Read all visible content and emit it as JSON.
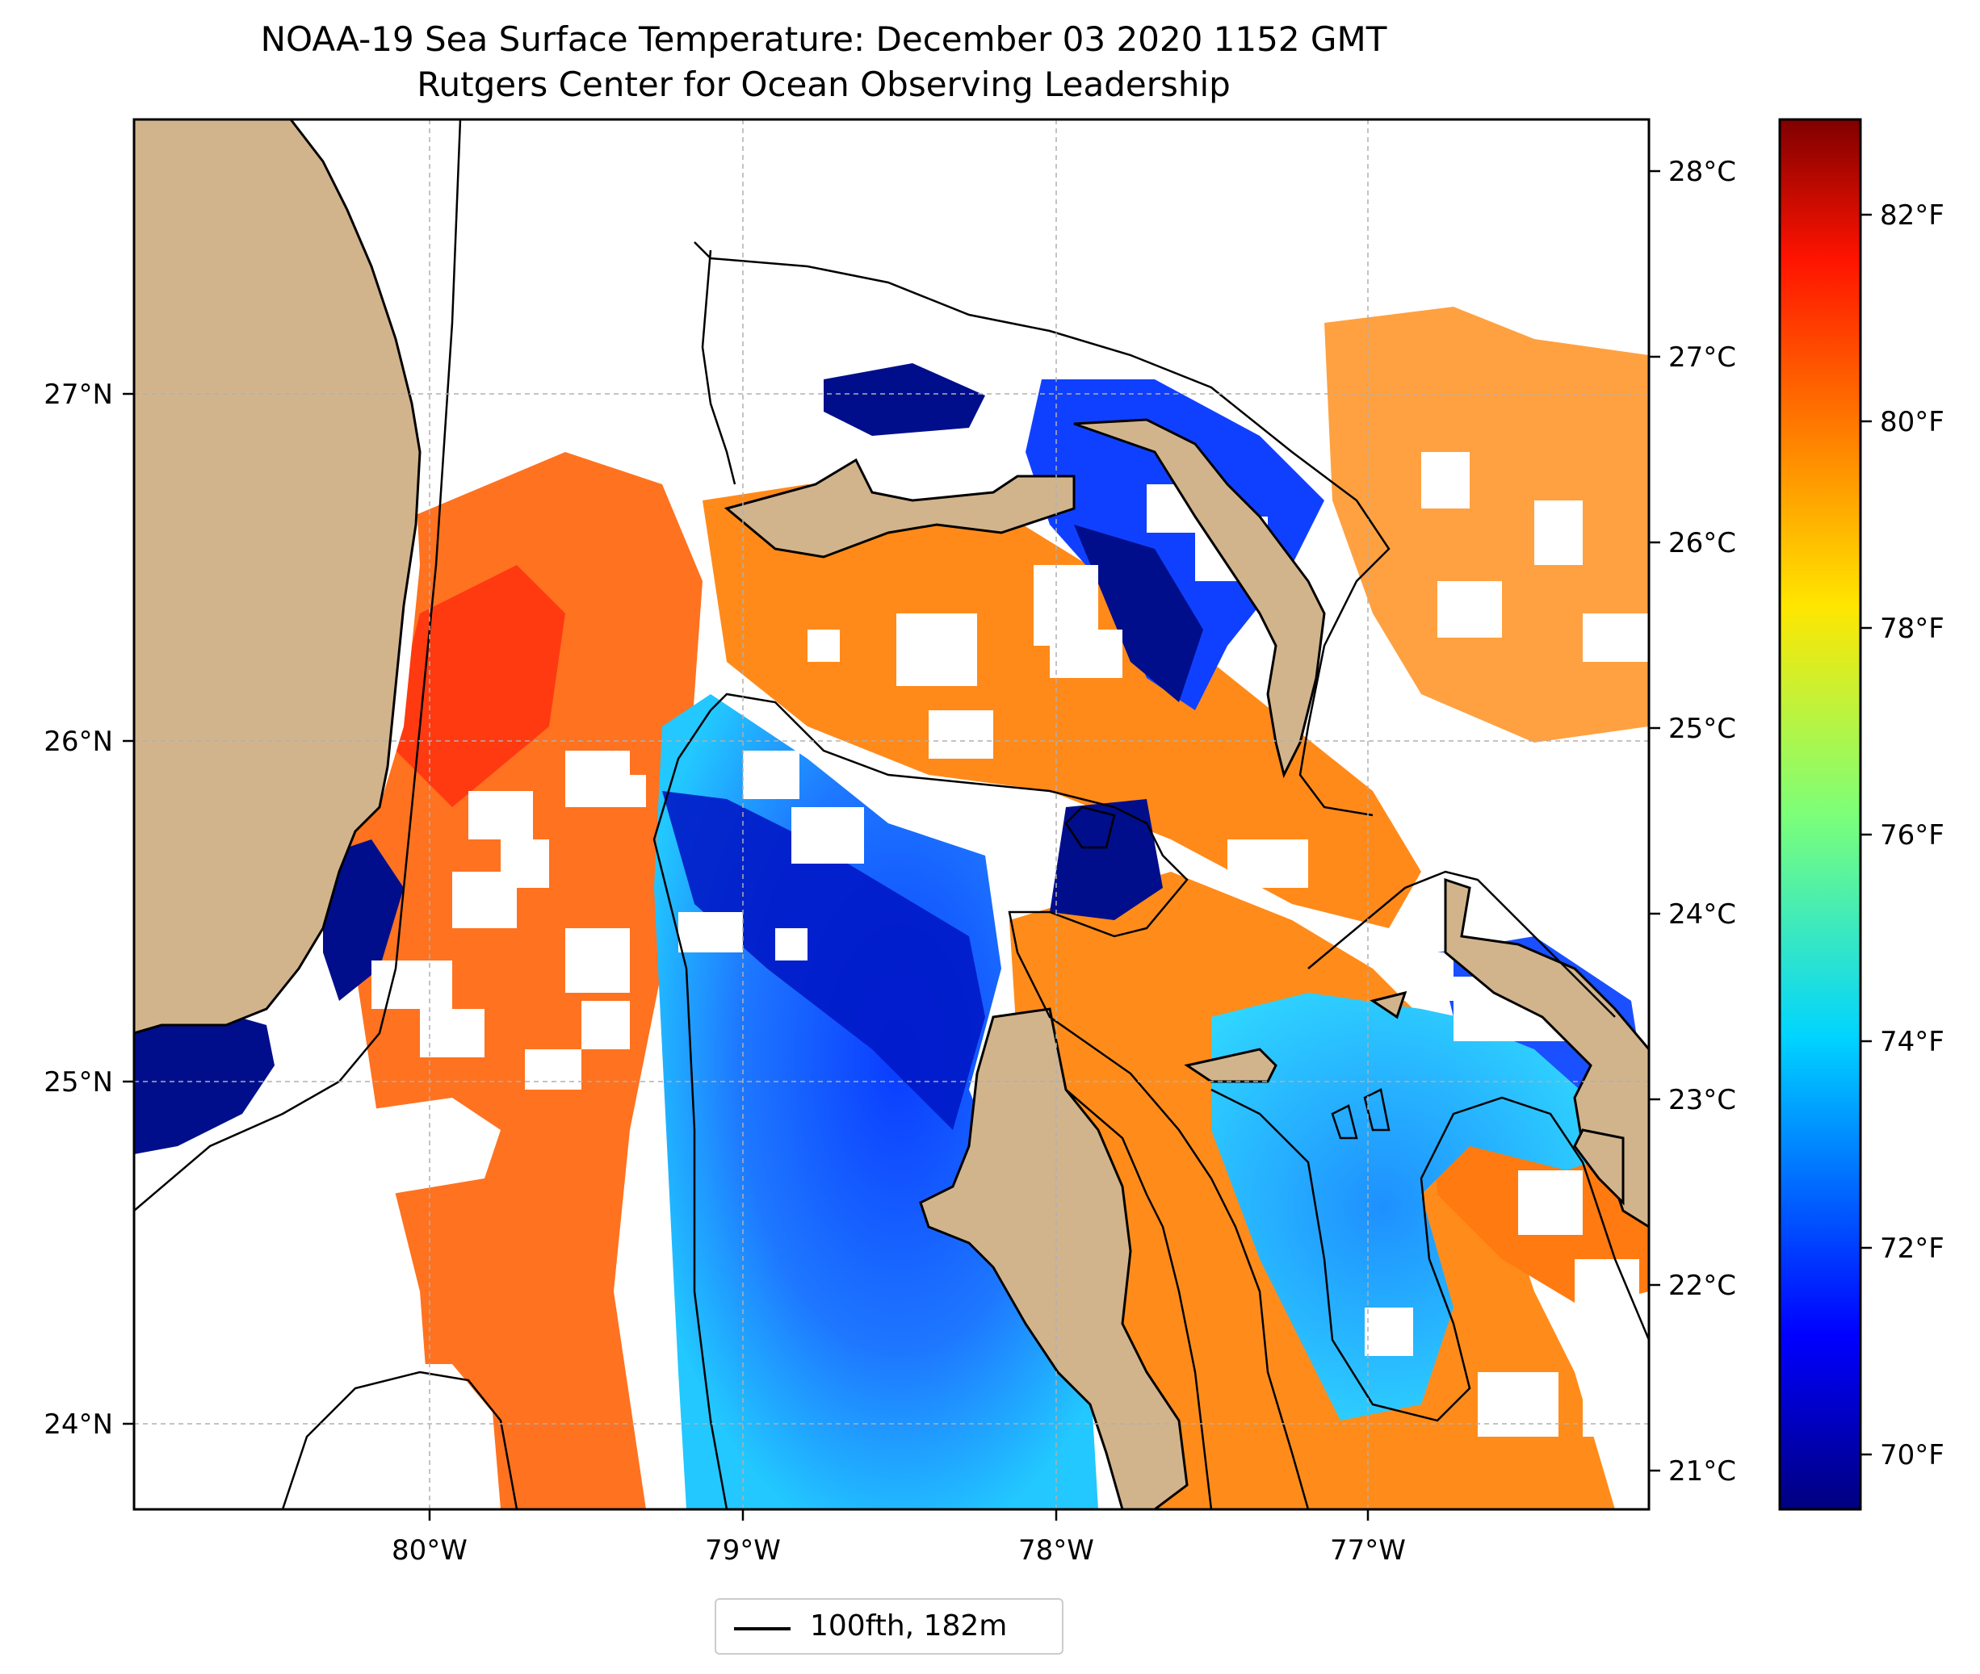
{
  "title": {
    "line1": "NOAA-19 Sea Surface Temperature: December 03 2020 1152 GMT",
    "line2": "Rutgers Center for Ocean Observing Leadership"
  },
  "map": {
    "lon_range": [
      -81.0,
      -76.15
    ],
    "lat_range": [
      23.75,
      27.8
    ],
    "lon_ticks": [
      "80°W",
      "79°W",
      "78°W",
      "77°W"
    ],
    "lat_ticks": [
      "27°N",
      "26°N",
      "25°N",
      "24°N"
    ],
    "celsius_ticks": [
      "28°C",
      "27°C",
      "26°C",
      "25°C",
      "24°C",
      "23°C",
      "22°C",
      "21°C"
    ],
    "colors": {
      "land": "#d2b48c",
      "cloud": "#ffffff",
      "warm": "#ff8c1a",
      "cool": "#1e64ff",
      "cold": "#000e8c",
      "isobath": "#000000",
      "grid": "#b0b0b0"
    }
  },
  "colorbar": {
    "fahrenheit_ticks": [
      "82°F",
      "80°F",
      "78°F",
      "76°F",
      "74°F",
      "72°F",
      "70°F"
    ],
    "colormap": "jet"
  },
  "legend": {
    "label": "100fth, 182m"
  }
}
